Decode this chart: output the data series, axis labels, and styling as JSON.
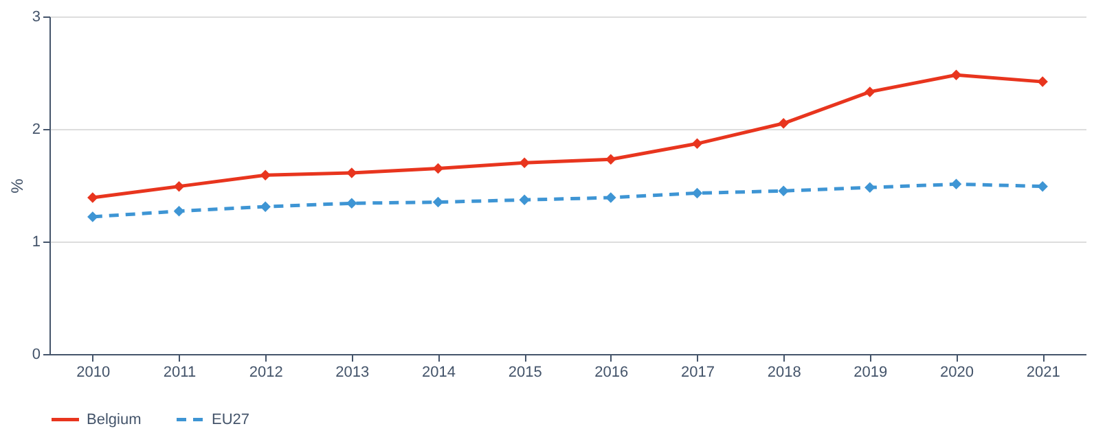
{
  "chart_data": {
    "type": "line",
    "ylabel": "%",
    "categories": [
      "2010",
      "2011",
      "2012",
      "2013",
      "2014",
      "2015",
      "2016",
      "2017",
      "2018",
      "2019",
      "2020",
      "2021"
    ],
    "series": [
      {
        "name": "Belgium",
        "color": "#e8351e",
        "line_style": "solid",
        "values": [
          1.39,
          1.49,
          1.59,
          1.61,
          1.65,
          1.7,
          1.73,
          1.87,
          2.05,
          2.33,
          2.48,
          2.42
        ]
      },
      {
        "name": "EU27",
        "color": "#3e95d4",
        "line_style": "dashed",
        "values": [
          1.22,
          1.27,
          1.31,
          1.34,
          1.35,
          1.37,
          1.39,
          1.43,
          1.45,
          1.48,
          1.51,
          1.49
        ]
      }
    ],
    "ylim": [
      0,
      3
    ],
    "yticks": [
      0,
      1,
      2,
      3
    ],
    "grid": "y",
    "legend": "bottom",
    "marker": "diamond"
  }
}
